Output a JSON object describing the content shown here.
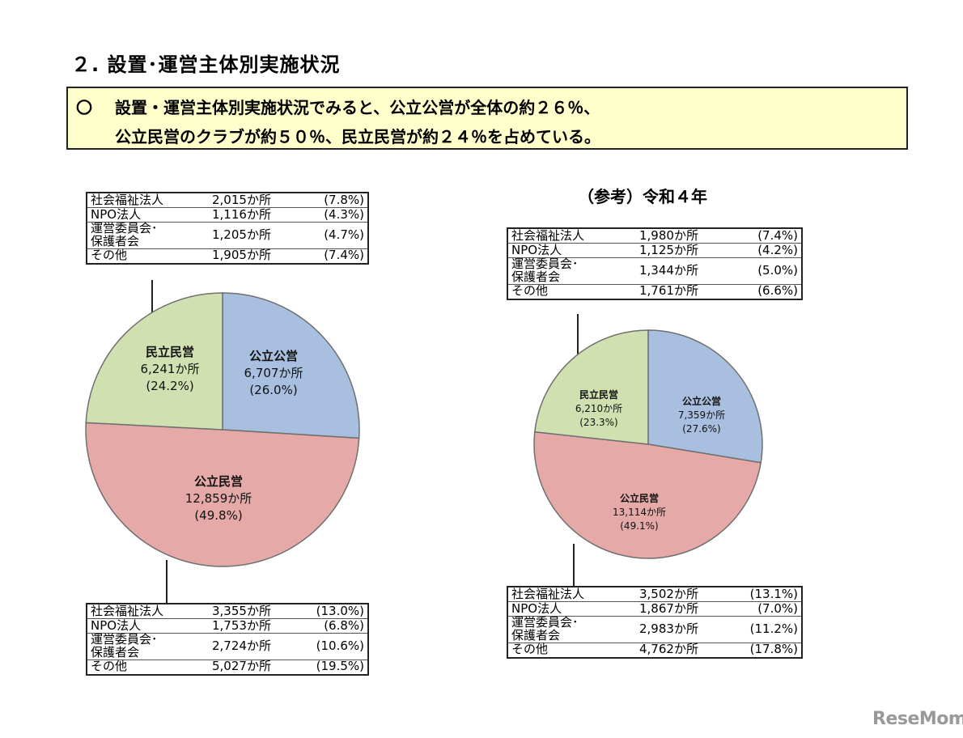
{
  "heading": "２. 設置･運営主体別実施状況",
  "summary": {
    "mark": "〇",
    "line1": "設置・運営主体別実施状況でみると、公立公営が全体の約２６％、",
    "line2": "公立民営のクラブが約５０％、民立民営が約２４％を占めている。"
  },
  "reference_title": "（参考）令和４年",
  "current": {
    "top_table": [
      {
        "name": "社会福祉法人",
        "count": "2,015か所",
        "pct": "(7.8%)"
      },
      {
        "name": "NPO法人",
        "count": "1,116か所",
        "pct": "(4.3%)"
      },
      {
        "name_line1": "運営委員会･",
        "name_line2": "保護者会",
        "count": "1,205か所",
        "pct": "(4.7%)"
      },
      {
        "name": "その他",
        "count": "1,905か所",
        "pct": "(7.4%)"
      }
    ],
    "bottom_table": [
      {
        "name": "社会福祉法人",
        "count": "3,355か所",
        "pct": "(13.0%)"
      },
      {
        "name": "NPO法人",
        "count": "1,753か所",
        "pct": "(6.8%)"
      },
      {
        "name_line1": "運営委員会･",
        "name_line2": "保護者会",
        "count": "2,724か所",
        "pct": "(10.6%)"
      },
      {
        "name": "その他",
        "count": "5,027か所",
        "pct": "(19.5%)"
      }
    ]
  },
  "reference": {
    "top_table": [
      {
        "name": "社会福祉法人",
        "count": "1,980か所",
        "pct": "(7.4%)"
      },
      {
        "name": "NPO法人",
        "count": "1,125か所",
        "pct": "(4.2%)"
      },
      {
        "name_line1": "運営委員会･",
        "name_line2": "保護者会",
        "count": "1,344か所",
        "pct": "(5.0%)"
      },
      {
        "name": "その他",
        "count": "1,761か所",
        "pct": "(6.6%)"
      }
    ],
    "bottom_table": [
      {
        "name": "社会福祉法人",
        "count": "3,502か所",
        "pct": "(13.1%)"
      },
      {
        "name": "NPO法人",
        "count": "1,867か所",
        "pct": "(7.0%)"
      },
      {
        "name_line1": "運営委員会･",
        "name_line2": "保護者会",
        "count": "2,983か所",
        "pct": "(11.2%)"
      },
      {
        "name": "その他",
        "count": "4,762か所",
        "pct": "(17.8%)"
      }
    ]
  },
  "chart_data": [
    {
      "type": "pie",
      "title": "",
      "categories": [
        "公立公営",
        "公立民営",
        "民立民営"
      ],
      "values": [
        6707,
        12859,
        6241
      ],
      "count_labels": [
        "6,707か所",
        "12,859か所",
        "6,241か所"
      ],
      "percent_labels": [
        "(26.0%)",
        "(49.8%)",
        "(24.2%)"
      ],
      "percents": [
        26.0,
        49.8,
        24.2
      ],
      "colors": [
        "#a9bfdf",
        "#e5a9a8",
        "#d1e0b0"
      ]
    },
    {
      "type": "pie",
      "title": "（参考）令和４年",
      "categories": [
        "公立公営",
        "公立民営",
        "民立民営"
      ],
      "values": [
        7359,
        13114,
        6210
      ],
      "count_labels": [
        "7,359か所",
        "13,114か所",
        "6,210か所"
      ],
      "percent_labels": [
        "(27.6%)",
        "(49.1%)",
        "(23.3%)"
      ],
      "percents": [
        27.6,
        49.1,
        23.3
      ],
      "colors": [
        "#a9bfdf",
        "#e5a9a8",
        "#d1e0b0"
      ]
    }
  ],
  "watermark": "ReseMom"
}
